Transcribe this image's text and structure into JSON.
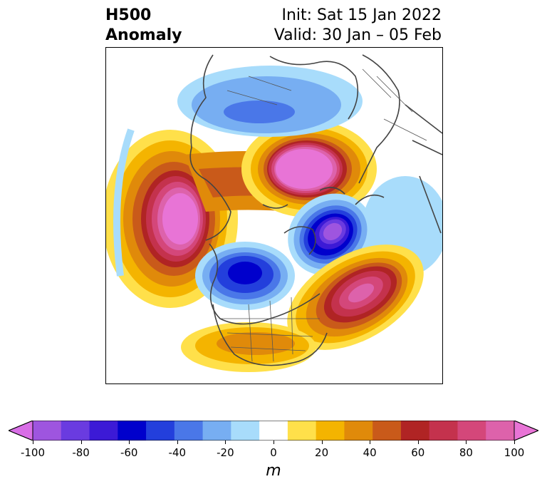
{
  "title": {
    "left_line1": "H500",
    "left_line2": "Anomaly",
    "right_line1": "Init: Sat 15 Jan 2022",
    "right_line2": "Valid: 30 Jan – 05 Feb"
  },
  "colorbar": {
    "units": "m",
    "tick_labels": [
      "-100",
      "-80",
      "-60",
      "-40",
      "-20",
      "0",
      "20",
      "40",
      "60",
      "80",
      "100"
    ],
    "colors": [
      "#d86ee6",
      "#9e55df",
      "#6a3be0",
      "#3c1ad6",
      "#0000cc",
      "#233fdc",
      "#4a77e8",
      "#77aef2",
      "#a8dcfb",
      "#ffffff",
      "#ffe04a",
      "#f4b400",
      "#e08a0a",
      "#c95a1a",
      "#b02424",
      "#c4324d",
      "#d4477a",
      "#dd62ab",
      "#e874d6"
    ]
  },
  "icons": {
    "left_arrow": "extend-min-arrow",
    "right_arrow": "extend-max-arrow"
  }
}
